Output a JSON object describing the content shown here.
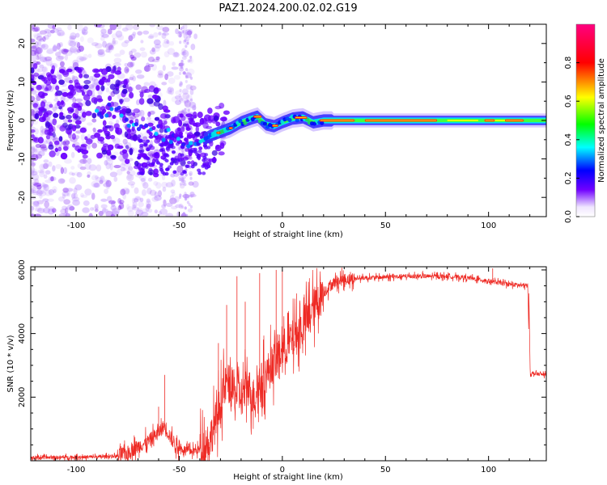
{
  "title": "PAZ1.2024.200.02.02.G19",
  "chart_data": [
    {
      "type": "heatmap",
      "xlabel": "Height of straight line (km)",
      "ylabel": "Frequency (Hz)",
      "xlim": [
        -122,
        128
      ],
      "ylim": [
        -25,
        25
      ],
      "xticks": [
        -100,
        -50,
        0,
        50,
        100
      ],
      "yticks": [
        -20,
        -10,
        0,
        10,
        20
      ],
      "colorbar": {
        "label": "Normalized spectral amplitude",
        "ticks": [
          0.0,
          0.2,
          0.4,
          0.6,
          0.8
        ],
        "range": [
          0,
          1
        ],
        "colors": [
          "#ffffff",
          "#7000ff",
          "#0000ff",
          "#00ffff",
          "#00ff00",
          "#ffff00",
          "#ff0000",
          "#ff007f"
        ]
      },
      "ridge_frequency": [
        {
          "x": -90,
          "f": 2.5
        },
        {
          "x": -80,
          "f": 2.0
        },
        {
          "x": -70,
          "f": -1.0
        },
        {
          "x": -60,
          "f": -3.0
        },
        {
          "x": -50,
          "f": -5.0
        },
        {
          "x": -40,
          "f": -5.5
        },
        {
          "x": -35,
          "f": -4.0
        },
        {
          "x": -30,
          "f": -3.0
        },
        {
          "x": -25,
          "f": -2.0
        },
        {
          "x": -20,
          "f": -0.5
        },
        {
          "x": -15,
          "f": 0.5
        },
        {
          "x": -12,
          "f": 1.0
        },
        {
          "x": -8,
          "f": -1.0
        },
        {
          "x": -4,
          "f": -1.5
        },
        {
          "x": 0,
          "f": -0.5
        },
        {
          "x": 5,
          "f": 0.5
        },
        {
          "x": 10,
          "f": 0.8
        },
        {
          "x": 15,
          "f": -0.5
        },
        {
          "x": 20,
          "f": 0.0
        },
        {
          "x": 128,
          "f": 0.0
        }
      ]
    },
    {
      "type": "line",
      "xlabel": "Height of straight line (km)",
      "ylabel": "SNR (10 * v/v)",
      "xlim": [
        -122,
        128
      ],
      "ylim": [
        0,
        6100
      ],
      "xticks": [
        -100,
        -50,
        0,
        50,
        100
      ],
      "yticks": [
        2000,
        4000,
        6000
      ],
      "color": "#ee2a24",
      "baseline_snr": [
        {
          "x": -122,
          "y": 100
        },
        {
          "x": -90,
          "y": 120
        },
        {
          "x": -80,
          "y": 150
        },
        {
          "x": -75,
          "y": 250
        },
        {
          "x": -70,
          "y": 450
        },
        {
          "x": -65,
          "y": 600
        },
        {
          "x": -60,
          "y": 900
        },
        {
          "x": -57,
          "y": 1100
        },
        {
          "x": -54,
          "y": 700
        },
        {
          "x": -50,
          "y": 400
        },
        {
          "x": -45,
          "y": 300
        },
        {
          "x": -40,
          "y": 350
        },
        {
          "x": -35,
          "y": 700
        },
        {
          "x": -32,
          "y": 1300
        },
        {
          "x": -30,
          "y": 1800
        },
        {
          "x": -27,
          "y": 2500
        },
        {
          "x": -24,
          "y": 2200
        },
        {
          "x": -20,
          "y": 2000
        },
        {
          "x": -17,
          "y": 2400
        },
        {
          "x": -14,
          "y": 2000
        },
        {
          "x": -10,
          "y": 2500
        },
        {
          "x": -5,
          "y": 3000
        },
        {
          "x": 0,
          "y": 3500
        },
        {
          "x": 5,
          "y": 3800
        },
        {
          "x": 10,
          "y": 4200
        },
        {
          "x": 15,
          "y": 4800
        },
        {
          "x": 20,
          "y": 5300
        },
        {
          "x": 25,
          "y": 5600
        },
        {
          "x": 30,
          "y": 5700
        },
        {
          "x": 40,
          "y": 5750
        },
        {
          "x": 60,
          "y": 5800
        },
        {
          "x": 80,
          "y": 5800
        },
        {
          "x": 90,
          "y": 5750
        },
        {
          "x": 100,
          "y": 5650
        },
        {
          "x": 110,
          "y": 5550
        },
        {
          "x": 119,
          "y": 5500
        },
        {
          "x": 120,
          "y": 2750
        },
        {
          "x": 128,
          "y": 2700
        }
      ],
      "peak_snr": [
        {
          "x": -57,
          "y": 2700
        },
        {
          "x": -60,
          "y": 1700
        },
        {
          "x": -31,
          "y": 3700
        },
        {
          "x": -27,
          "y": 4900
        },
        {
          "x": -22,
          "y": 5800
        },
        {
          "x": -18,
          "y": 5000
        },
        {
          "x": -11,
          "y": 5900
        },
        {
          "x": -3,
          "y": 6000
        },
        {
          "x": 0,
          "y": 6000
        },
        {
          "x": 102,
          "y": 6050
        }
      ]
    }
  ]
}
